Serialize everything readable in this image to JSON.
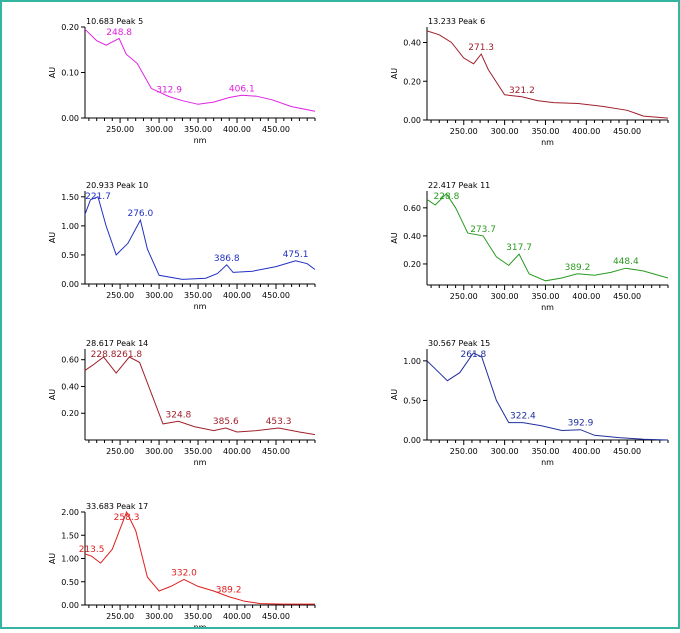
{
  "frame": {
    "border_color": "#33b5a0"
  },
  "chart_data": [
    {
      "type": "line",
      "title": "10.683 Peak 5",
      "xlabel": "nm",
      "ylabel": "AU",
      "color": "#e020e0",
      "xlim": [
        205,
        500
      ],
      "ylim": [
        0,
        0.2
      ],
      "xticks": [
        250,
        300,
        350,
        400,
        450
      ],
      "xtick_labels": [
        "250.00",
        "300.00",
        "350.00",
        "400.00",
        "450.00"
      ],
      "yticks": [
        0,
        0.1,
        0.2
      ],
      "ytick_labels": [
        "0.00",
        "0.10",
        "0.20"
      ],
      "grid": false,
      "series": [
        {
          "x": [
            205,
            220,
            232,
            248.8,
            258,
            272,
            290,
            312.9,
            330,
            350,
            370,
            390,
            406.1,
            425,
            445,
            470,
            500
          ],
          "y": [
            0.195,
            0.17,
            0.16,
            0.175,
            0.14,
            0.12,
            0.065,
            0.047,
            0.038,
            0.03,
            0.035,
            0.045,
            0.05,
            0.048,
            0.04,
            0.025,
            0.015
          ]
        }
      ],
      "annotations": [
        {
          "label": "248.8",
          "x": 248.8,
          "y": 0.175
        },
        {
          "label": "312.9",
          "x": 312.9,
          "y": 0.047
        },
        {
          "label": "406.1",
          "x": 406.1,
          "y": 0.05
        }
      ]
    },
    {
      "type": "line",
      "title": "13.233 Peak 6",
      "xlabel": "nm",
      "ylabel": "AU",
      "color": "#a0202a",
      "xlim": [
        205,
        500
      ],
      "ylim": [
        0,
        0.48
      ],
      "xticks": [
        250,
        300,
        350,
        400,
        450
      ],
      "xtick_labels": [
        "250.00",
        "300.00",
        "350.00",
        "400.00",
        "450.00"
      ],
      "yticks": [
        0,
        0.2,
        0.4
      ],
      "ytick_labels": [
        "0.00",
        "0.20",
        "0.40"
      ],
      "grid": false,
      "series": [
        {
          "x": [
            205,
            220,
            235,
            250,
            262,
            271.3,
            280,
            300,
            321.2,
            340,
            360,
            390,
            420,
            450,
            470,
            500
          ],
          "y": [
            0.46,
            0.44,
            0.4,
            0.32,
            0.29,
            0.34,
            0.26,
            0.13,
            0.12,
            0.1,
            0.09,
            0.085,
            0.07,
            0.05,
            0.02,
            0.01
          ]
        }
      ],
      "annotations": [
        {
          "label": "271.3",
          "x": 271.3,
          "y": 0.34
        },
        {
          "label": "321.2",
          "x": 321.2,
          "y": 0.12
        }
      ]
    },
    {
      "type": "line",
      "title": "20.933 Peak 10",
      "xlabel": "nm",
      "ylabel": "AU",
      "color": "#2030c0",
      "xlim": [
        205,
        500
      ],
      "ylim": [
        0,
        1.6
      ],
      "xticks": [
        250,
        300,
        350,
        400,
        450
      ],
      "xtick_labels": [
        "250.00",
        "300.00",
        "350.00",
        "400.00",
        "450.00"
      ],
      "yticks": [
        0,
        0.5,
        1.0,
        1.5
      ],
      "ytick_labels": [
        "0.00",
        "0.50",
        "1.00",
        "1.50"
      ],
      "grid": false,
      "series": [
        {
          "x": [
            205,
            212,
            221.7,
            232,
            245,
            260,
            276.0,
            285,
            300,
            330,
            360,
            375,
            386.8,
            395,
            420,
            450,
            475.1,
            490,
            500
          ],
          "y": [
            1.2,
            1.45,
            1.5,
            1.0,
            0.5,
            0.7,
            1.1,
            0.6,
            0.15,
            0.08,
            0.1,
            0.18,
            0.33,
            0.2,
            0.22,
            0.3,
            0.4,
            0.35,
            0.25
          ]
        }
      ],
      "annotations": [
        {
          "label": "221.7",
          "x": 221.7,
          "y": 1.5
        },
        {
          "label": "276.0",
          "x": 276.0,
          "y": 1.1
        },
        {
          "label": "386.8",
          "x": 386.8,
          "y": 0.33
        },
        {
          "label": "475.1",
          "x": 475.1,
          "y": 0.4
        }
      ]
    },
    {
      "type": "line",
      "title": "22.417 Peak 11",
      "xlabel": "nm",
      "ylabel": "AU",
      "color": "#2a9a20",
      "xlim": [
        205,
        500
      ],
      "ylim": [
        0.05,
        0.72
      ],
      "xticks": [
        250,
        300,
        350,
        400,
        450
      ],
      "xtick_labels": [
        "250.00",
        "300.00",
        "350.00",
        "400.00",
        "450.00"
      ],
      "yticks": [
        0.2,
        0.4,
        0.6
      ],
      "ytick_labels": [
        "0.20",
        "0.40",
        "0.60"
      ],
      "grid": false,
      "series": [
        {
          "x": [
            205,
            215,
            228.8,
            240,
            255,
            273.7,
            290,
            305,
            317.7,
            330,
            350,
            370,
            389.2,
            410,
            430,
            448.4,
            470,
            500
          ],
          "y": [
            0.66,
            0.62,
            0.7,
            0.6,
            0.42,
            0.4,
            0.25,
            0.19,
            0.27,
            0.13,
            0.08,
            0.1,
            0.13,
            0.12,
            0.14,
            0.17,
            0.15,
            0.1
          ]
        }
      ],
      "annotations": [
        {
          "label": "228.8",
          "x": 228.8,
          "y": 0.7
        },
        {
          "label": "273.7",
          "x": 273.7,
          "y": 0.4
        },
        {
          "label": "317.7",
          "x": 317.7,
          "y": 0.27
        },
        {
          "label": "389.2",
          "x": 389.2,
          "y": 0.13
        },
        {
          "label": "448.4",
          "x": 448.4,
          "y": 0.17
        }
      ]
    },
    {
      "type": "line",
      "title": "28.617 Peak 14",
      "xlabel": "nm",
      "ylabel": "AU",
      "color": "#a0202a",
      "xlim": [
        205,
        500
      ],
      "ylim": [
        0,
        0.68
      ],
      "xticks": [
        250,
        300,
        350,
        400,
        450
      ],
      "xtick_labels": [
        "250.00",
        "300.00",
        "350.00",
        "400.00",
        "450.00"
      ],
      "yticks": [
        0.2,
        0.4,
        0.6
      ],
      "ytick_labels": [
        "0.20",
        "0.40",
        "0.60"
      ],
      "grid": false,
      "series": [
        {
          "x": [
            205,
            215,
            228.8,
            245,
            261.8,
            275,
            290,
            305,
            324.8,
            345,
            370,
            385.6,
            400,
            425,
            453.3,
            480,
            500
          ],
          "y": [
            0.52,
            0.56,
            0.62,
            0.5,
            0.62,
            0.58,
            0.35,
            0.12,
            0.14,
            0.1,
            0.07,
            0.09,
            0.06,
            0.07,
            0.09,
            0.06,
            0.04
          ]
        }
      ],
      "annotations": [
        {
          "label": "228.8",
          "x": 228.8,
          "y": 0.62
        },
        {
          "label": "261.8",
          "x": 261.8,
          "y": 0.62
        },
        {
          "label": "324.8",
          "x": 324.8,
          "y": 0.14
        },
        {
          "label": "385.6",
          "x": 385.6,
          "y": 0.09
        },
        {
          "label": "453.3",
          "x": 453.3,
          "y": 0.09
        }
      ]
    },
    {
      "type": "line",
      "title": "30.567 Peak 15",
      "xlabel": "nm",
      "ylabel": "AU",
      "color": "#2030a0",
      "xlim": [
        205,
        500
      ],
      "ylim": [
        0,
        1.15
      ],
      "xticks": [
        250,
        300,
        350,
        400,
        450
      ],
      "xtick_labels": [
        "250.00",
        "300.00",
        "350.00",
        "400.00",
        "450.00"
      ],
      "yticks": [
        0,
        0.5,
        1.0
      ],
      "ytick_labels": [
        "0.00",
        "0.50",
        "1.00"
      ],
      "grid": false,
      "series": [
        {
          "x": [
            205,
            215,
            230,
            245,
            261.8,
            272,
            290,
            305,
            322.4,
            345,
            370,
            392.9,
            410,
            440,
            470,
            500
          ],
          "y": [
            1.0,
            0.9,
            0.75,
            0.85,
            1.1,
            1.05,
            0.5,
            0.22,
            0.22,
            0.18,
            0.12,
            0.13,
            0.06,
            0.03,
            0.01,
            0.0
          ]
        }
      ],
      "annotations": [
        {
          "label": "261.8",
          "x": 261.8,
          "y": 1.1
        },
        {
          "label": "322.4",
          "x": 322.4,
          "y": 0.22
        },
        {
          "label": "392.9",
          "x": 392.9,
          "y": 0.13
        }
      ]
    },
    {
      "type": "line",
      "title": "33.683 Peak 17",
      "xlabel": "nm",
      "ylabel": "AU",
      "color": "#e02020",
      "xlim": [
        205,
        500
      ],
      "ylim": [
        0,
        2.0
      ],
      "xticks": [
        250,
        300,
        350,
        400,
        450
      ],
      "xtick_labels": [
        "250.00",
        "300.00",
        "350.00",
        "400.00",
        "450.00"
      ],
      "yticks": [
        0,
        0.5,
        1.0,
        1.5,
        2.0
      ],
      "ytick_labels": [
        "0.00",
        "0.50",
        "1.00",
        "1.50",
        "2.00"
      ],
      "grid": false,
      "series": [
        {
          "x": [
            205,
            213.5,
            225,
            240,
            258.3,
            270,
            285,
            300,
            315,
            332.0,
            350,
            370,
            389.2,
            410,
            430,
            460,
            500
          ],
          "y": [
            1.1,
            1.05,
            0.9,
            1.2,
            2.0,
            1.6,
            0.6,
            0.3,
            0.4,
            0.55,
            0.4,
            0.3,
            0.18,
            0.08,
            0.03,
            0.02,
            0.02
          ]
        }
      ],
      "annotations": [
        {
          "label": "213.5",
          "x": 213.5,
          "y": 1.05
        },
        {
          "label": "258.3",
          "x": 258.3,
          "y": 2.0
        },
        {
          "label": "332.0",
          "x": 332.0,
          "y": 0.55
        },
        {
          "label": "389.2",
          "x": 389.2,
          "y": 0.18
        }
      ]
    }
  ]
}
